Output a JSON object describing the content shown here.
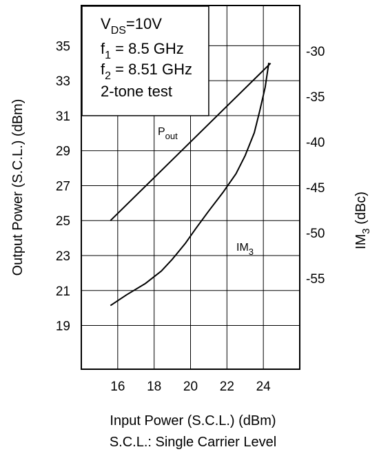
{
  "chart_data": {
    "type": "line",
    "xlabel": "Input Power (S.C.L.) (dBm)",
    "footnote": "S.C.L.: Single Carrier Level",
    "ylabel_left": "Output Power (S.C.L.) (dBm)",
    "ylabel_right_main": "IM",
    "ylabel_right_sub": "3",
    "ylabel_right_unit": " (dBc)",
    "xlim": [
      14,
      26
    ],
    "ylim_left": [
      16.5,
      37.3
    ],
    "ylim_right": [
      -65,
      -25
    ],
    "x_ticks": [
      "16",
      "18",
      "20",
      "22",
      "24"
    ],
    "y_left_ticks": [
      "19",
      "21",
      "23",
      "25",
      "27",
      "29",
      "31",
      "33",
      "35"
    ],
    "y_right_ticks": [
      "-30",
      "-35",
      "-40",
      "-45",
      "-50",
      "-55"
    ],
    "grid": true,
    "annotation_lines": [
      {
        "main": "V",
        "sub": "DS",
        "rest": "=10V"
      },
      {
        "main": "f",
        "sub": "1",
        "rest": " = 8.5 GHz"
      },
      {
        "main": "f",
        "sub": "2",
        "rest": " = 8.51 GHz"
      },
      {
        "main": "2-tone test",
        "sub": "",
        "rest": ""
      }
    ],
    "series": [
      {
        "name": "Pout",
        "label_main": "P",
        "label_sub": "out",
        "axis": "left",
        "x": [
          15.6,
          24.4
        ],
        "y": [
          25.0,
          34.0
        ]
      },
      {
        "name": "IM3",
        "label_main": "IM",
        "label_sub": "3",
        "axis": "right",
        "x": [
          15.6,
          16.5,
          17.5,
          18.4,
          19.0,
          19.7,
          20.3,
          21.0,
          21.8,
          22.5,
          23.0,
          23.5,
          23.8,
          24.1,
          24.3
        ],
        "y": [
          -58.0,
          -56.8,
          -55.6,
          -54.2,
          -52.9,
          -51.2,
          -49.5,
          -47.6,
          -45.5,
          -43.5,
          -41.5,
          -39.0,
          -36.6,
          -34.0,
          -31.3
        ]
      }
    ]
  }
}
